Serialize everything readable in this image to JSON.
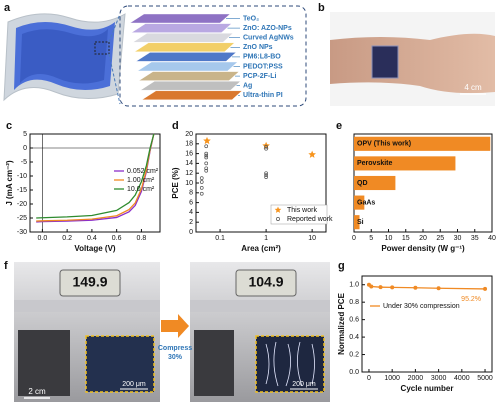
{
  "panel_labels": [
    "a",
    "b",
    "c",
    "d",
    "e",
    "f",
    "g"
  ],
  "panel_a": {
    "layers": [
      {
        "name": "TeO₂",
        "color": "#8e72c4"
      },
      {
        "name": "ZnO: AZO-NPs",
        "color": "#b9a8e2"
      },
      {
        "name": "Curved AgNWs",
        "color": "#d9d9df"
      },
      {
        "name": "ZnO NPs",
        "color": "#f2cf68"
      },
      {
        "name": "PM6:L8-BO",
        "color": "#4f78c8"
      },
      {
        "name": "PEDOT:PSS",
        "color": "#a6c8ec"
      },
      {
        "name": "PCP-2F-Li",
        "color": "#c9b48a"
      },
      {
        "name": "Ag",
        "color": "#bfbfbf"
      },
      {
        "name": "Ultra-thin PI",
        "color": "#d9782e"
      }
    ]
  },
  "panel_b": {
    "scale_bar": "4 cm"
  },
  "panel_f": {
    "left_display": "149.9",
    "right_display": "104.9",
    "scale_bar": "2 cm",
    "inset_scale": "200 μm",
    "arrow_label": [
      "Compress",
      "30%"
    ]
  },
  "chart_data": [
    {
      "type": "line",
      "xlabel": "Voltage (V)",
      "ylabel": "J (mA cm⁻²)",
      "xlim": [
        -0.1,
        0.95
      ],
      "ylim": [
        -30,
        5
      ],
      "xticks": [
        {
          "value": 0,
          "label": "0.0"
        },
        0.2,
        0.4,
        0.6,
        0.8
      ],
      "yticks": [
        -30,
        -25,
        -20,
        -15,
        -10,
        -5,
        0,
        5
      ],
      "zero_lines": true,
      "legend": "center right",
      "series": [
        {
          "name": "0.052 cm²",
          "color": "#8b2fc9",
          "x": [
            -0.05,
            0,
            0.2,
            0.4,
            0.6,
            0.7,
            0.75,
            0.8,
            0.84,
            0.87,
            0.9
          ],
          "values": [
            -26.4,
            -26.3,
            -26.1,
            -25.8,
            -24.8,
            -22.8,
            -20.5,
            -15.5,
            -8.5,
            -1,
            5
          ]
        },
        {
          "name": "1.00 cm²",
          "color": "#f08a24",
          "x": [
            -0.05,
            0,
            0.2,
            0.4,
            0.6,
            0.7,
            0.75,
            0.8,
            0.84,
            0.87,
            0.9
          ],
          "values": [
            -26.1,
            -26,
            -25.8,
            -25.4,
            -24.2,
            -22,
            -19.6,
            -14.6,
            -7.8,
            -0.6,
            5
          ]
        },
        {
          "name": "10.0 cm²",
          "color": "#2e8b2e",
          "x": [
            -0.05,
            0,
            0.2,
            0.4,
            0.6,
            0.7,
            0.75,
            0.8,
            0.84,
            0.87,
            0.9
          ],
          "values": [
            -25,
            -24.9,
            -24.6,
            -24.1,
            -22.3,
            -19.5,
            -16.8,
            -12,
            -6.3,
            0,
            5
          ]
        }
      ]
    },
    {
      "type": "scatter",
      "xlabel": "Area (cm²)",
      "ylabel": "PCE (%)",
      "xscale": "log",
      "xlim": [
        0.03,
        20
      ],
      "ylim": [
        0,
        20
      ],
      "xticks": [
        0.1,
        1,
        10
      ],
      "yticks": [
        0,
        2,
        4,
        6,
        8,
        10,
        12,
        14,
        16,
        18,
        20
      ],
      "legend": "lower right",
      "series": [
        {
          "name": "This work",
          "color": "#f7941d",
          "marker": "star",
          "x": [
            0.052,
            1,
            10
          ],
          "values": [
            18.6,
            17.6,
            15.8
          ]
        },
        {
          "name": "Reported work",
          "color": "#555555",
          "marker": "circle",
          "x": [
            0.04,
            0.04,
            0.04,
            0.04,
            0.05,
            0.05,
            0.05,
            0.05,
            0.05,
            0.05,
            0.05,
            1,
            1,
            1,
            1,
            1
          ],
          "values": [
            7.8,
            9,
            10.2,
            11,
            12.5,
            13,
            14,
            15.2,
            15.6,
            16,
            17.5,
            11.2,
            11.6,
            12,
            17,
            17.4
          ]
        }
      ]
    },
    {
      "type": "bar",
      "orientation": "horizontal",
      "xlabel": "Power density (W g⁻¹)",
      "xlim": [
        0,
        40
      ],
      "xticks": [
        0,
        5,
        10,
        15,
        20,
        25,
        30,
        35,
        40
      ],
      "color": "#f08a24",
      "categories": [
        "OPV (This work)",
        "Perovskite",
        "QD",
        "GaAs",
        "Si"
      ],
      "values": [
        39.5,
        29.4,
        12,
        3,
        1.6
      ]
    },
    {
      "type": "line",
      "xlabel": "Cycle number",
      "ylabel": "Normalized PCE",
      "xlim": [
        -300,
        5300
      ],
      "ylim": [
        0,
        1.1
      ],
      "xticks": [
        0,
        1000,
        2000,
        3000,
        4000,
        5000
      ],
      "yticks": [
        {
          "value": 0,
          "label": "0.0"
        },
        0.2,
        0.4,
        0.6,
        0.8,
        {
          "value": 1,
          "label": "1.0"
        }
      ],
      "legend": "center",
      "markers": true,
      "annotation": "95.2%",
      "series": [
        {
          "name": "Under 30% compression",
          "color": "#f08a24",
          "x": [
            0,
            100,
            500,
            1000,
            2000,
            3000,
            5000
          ],
          "values": [
            1,
            0.98,
            0.972,
            0.97,
            0.965,
            0.96,
            0.952
          ]
        }
      ]
    }
  ]
}
